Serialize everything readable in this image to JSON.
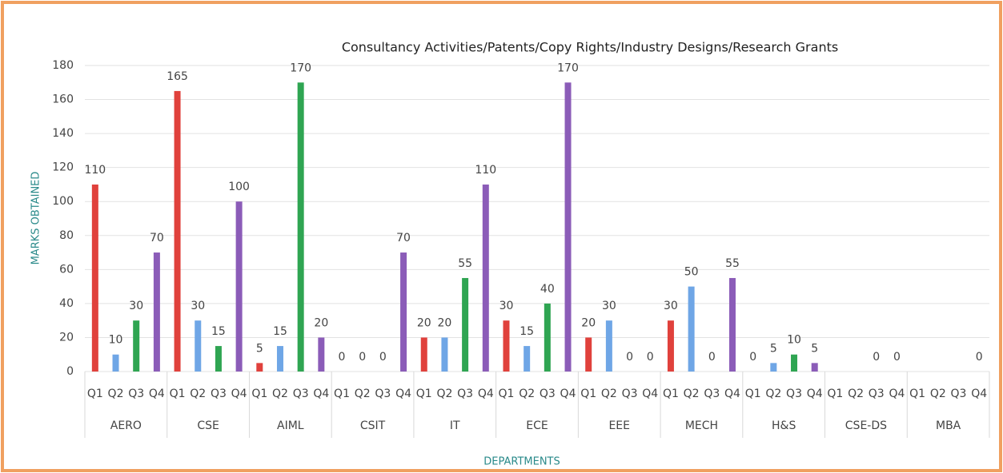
{
  "chart_data": {
    "type": "bar",
    "title": "Consultancy Activities/Patents/Copy Rights/Industry Designs/Research Grants",
    "x_label": "DEPARTMENTS",
    "y_label": "MARKS OBTAINED",
    "categories": [
      "AERO",
      "CSE",
      "AIML",
      "CSIT",
      "IT",
      "ECE",
      "EEE",
      "MECH",
      "H&S",
      "CSE-DS",
      "MBA"
    ],
    "series": [
      {
        "name": "Q1",
        "color": "#e0413c",
        "values": [
          110,
          165,
          5,
          0,
          20,
          30,
          20,
          30,
          0,
          null,
          null
        ]
      },
      {
        "name": "Q2",
        "color": "#6fa6e6",
        "values": [
          10,
          30,
          15,
          0,
          20,
          15,
          30,
          50,
          5,
          null,
          null
        ]
      },
      {
        "name": "Q3",
        "color": "#2fa552",
        "values": [
          30,
          15,
          170,
          0,
          55,
          40,
          0,
          0,
          10,
          0,
          null
        ]
      },
      {
        "name": "Q4",
        "color": "#8b5cb8",
        "values": [
          70,
          100,
          20,
          70,
          110,
          170,
          0,
          55,
          5,
          0,
          0
        ]
      }
    ],
    "ylim": [
      0,
      180
    ],
    "yticks": [
      0,
      20,
      40,
      60,
      80,
      100,
      120,
      140,
      160,
      180
    ],
    "grid": true
  }
}
